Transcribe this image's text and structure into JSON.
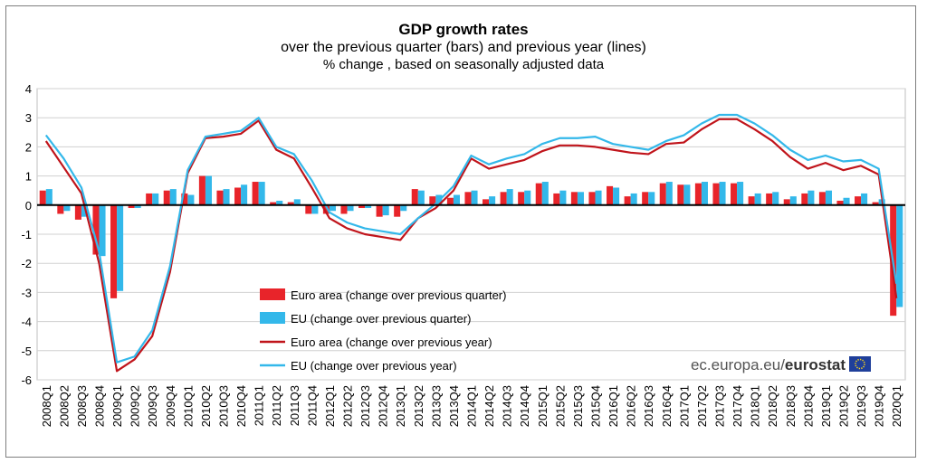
{
  "header": {
    "title": "GDP growth rates",
    "subtitle": "over the previous quarter (bars) and previous year (lines)",
    "subtitle2": "% change , based on seasonally adjusted data"
  },
  "footer": {
    "source_prefix": "ec.europa.eu/",
    "source_brand": "eurostat"
  },
  "colors": {
    "euro_bar": "#e8242a",
    "eu_bar": "#33b8ea",
    "euro_line": "#c0141b",
    "eu_line": "#33b8ea"
  },
  "chart_data": {
    "type": "bar",
    "title": "GDP growth rates",
    "subtitle": "over the previous quarter (bars) and previous year (lines)",
    "ylim": [
      -6,
      4
    ],
    "yticks": [
      4,
      3,
      2,
      1,
      0,
      -1,
      -2,
      -3,
      -4,
      -5,
      -6
    ],
    "grid": true,
    "legend_position": "bottom-left",
    "categories": [
      "2008Q1",
      "2008Q2",
      "2008Q3",
      "2008Q4",
      "2009Q1",
      "2009Q2",
      "2009Q3",
      "2009Q4",
      "2010Q1",
      "2010Q2",
      "2010Q3",
      "2010Q4",
      "2011Q1",
      "2011Q2",
      "2011Q3",
      "2011Q4",
      "2012Q1",
      "2012Q2",
      "2012Q3",
      "2012Q4",
      "2013Q1",
      "2013Q2",
      "2013Q3",
      "2013Q4",
      "2014Q1",
      "2014Q2",
      "2014Q3",
      "2014Q4",
      "2015Q1",
      "2015Q2",
      "2015Q3",
      "2015Q4",
      "2016Q1",
      "2016Q2",
      "2016Q3",
      "2016Q4",
      "2017Q1",
      "2017Q2",
      "2017Q3",
      "2017Q4",
      "2018Q1",
      "2018Q2",
      "2018Q3",
      "2018Q4",
      "2019Q1",
      "2019Q2",
      "2019Q3",
      "2019Q4",
      "2020Q1"
    ],
    "series": [
      {
        "name": "Euro area (change over previous quarter)",
        "kind": "bar",
        "values": [
          0.5,
          -0.3,
          -0.5,
          -1.7,
          -3.2,
          -0.1,
          0.4,
          0.5,
          0.4,
          1.0,
          0.5,
          0.6,
          0.8,
          0.1,
          0.1,
          -0.3,
          -0.3,
          -0.3,
          -0.1,
          -0.4,
          -0.4,
          0.55,
          0.3,
          0.25,
          0.45,
          0.2,
          0.45,
          0.45,
          0.75,
          0.4,
          0.45,
          0.45,
          0.65,
          0.3,
          0.45,
          0.75,
          0.7,
          0.75,
          0.75,
          0.75,
          0.3,
          0.4,
          0.2,
          0.4,
          0.45,
          0.15,
          0.3,
          0.1,
          -3.8
        ]
      },
      {
        "name": "EU (change over previous quarter)",
        "kind": "bar",
        "values": [
          0.55,
          -0.2,
          -0.4,
          -1.75,
          -2.95,
          -0.1,
          0.4,
          0.55,
          0.35,
          1.0,
          0.55,
          0.7,
          0.8,
          0.15,
          0.2,
          -0.3,
          -0.2,
          -0.2,
          -0.1,
          -0.35,
          -0.2,
          0.5,
          0.35,
          0.35,
          0.5,
          0.3,
          0.55,
          0.5,
          0.8,
          0.5,
          0.45,
          0.5,
          0.6,
          0.4,
          0.45,
          0.8,
          0.7,
          0.8,
          0.8,
          0.8,
          0.4,
          0.45,
          0.3,
          0.5,
          0.5,
          0.25,
          0.4,
          0.2,
          -3.5
        ]
      },
      {
        "name": "Euro area (change over previous year)",
        "kind": "line",
        "values": [
          2.2,
          1.3,
          0.4,
          -2.0,
          -5.7,
          -5.3,
          -4.5,
          -2.3,
          1.1,
          2.3,
          2.35,
          2.45,
          2.9,
          1.9,
          1.6,
          0.6,
          -0.45,
          -0.8,
          -1.0,
          -1.1,
          -1.2,
          -0.45,
          -0.1,
          0.5,
          1.6,
          1.25,
          1.4,
          1.55,
          1.85,
          2.05,
          2.05,
          2.0,
          1.9,
          1.8,
          1.75,
          2.1,
          2.15,
          2.6,
          2.95,
          2.95,
          2.6,
          2.2,
          1.65,
          1.25,
          1.45,
          1.2,
          1.35,
          1.05,
          -3.2
        ]
      },
      {
        "name": "EU (change over previous year)",
        "kind": "line",
        "values": [
          2.4,
          1.6,
          0.6,
          -1.6,
          -5.4,
          -5.2,
          -4.3,
          -2.1,
          1.2,
          2.35,
          2.45,
          2.55,
          3.0,
          2.0,
          1.75,
          0.85,
          -0.25,
          -0.6,
          -0.8,
          -0.9,
          -1.0,
          -0.45,
          0.05,
          0.65,
          1.7,
          1.4,
          1.6,
          1.75,
          2.1,
          2.3,
          2.3,
          2.35,
          2.1,
          2.0,
          1.9,
          2.2,
          2.4,
          2.8,
          3.1,
          3.1,
          2.8,
          2.4,
          1.9,
          1.55,
          1.7,
          1.5,
          1.55,
          1.25,
          -2.7
        ]
      }
    ]
  }
}
